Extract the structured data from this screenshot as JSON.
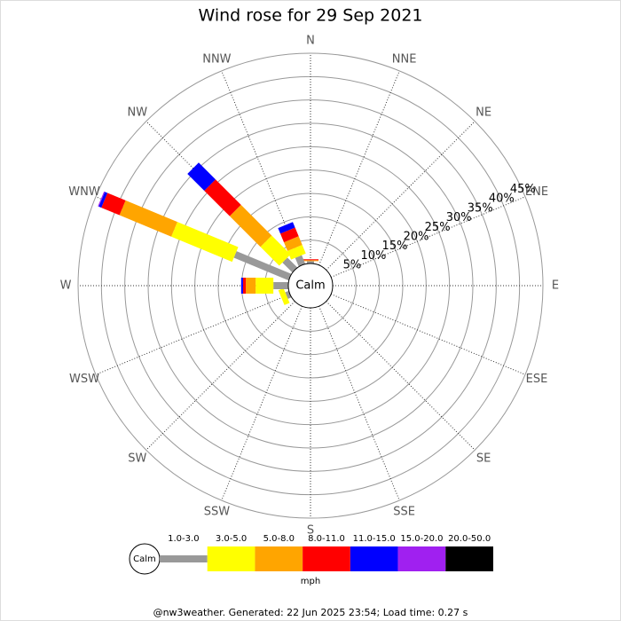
{
  "chart_data": {
    "type": "windrose",
    "title": "Wind rose for 29 Sep 2021",
    "directions": [
      "N",
      "NNE",
      "NE",
      "ENE",
      "E",
      "ESE",
      "SE",
      "SSE",
      "S",
      "SSW",
      "SW",
      "WSW",
      "W",
      "WNW",
      "NW",
      "NNW"
    ],
    "series": [
      {
        "name": "1.0-3.0",
        "color": "#999999",
        "values": [
          0.5,
          0,
          0,
          0,
          0,
          0,
          0,
          0,
          0,
          0,
          0,
          0.8,
          3.2,
          12.7,
          3,
          2
        ]
      },
      {
        "name": "3.0-5.0",
        "color": "#ffff00",
        "values": [
          0,
          0,
          0,
          0,
          0,
          0,
          0,
          0,
          0,
          0,
          0,
          1.2,
          3.8,
          14.1,
          5.7,
          2
        ]
      },
      {
        "name": "5.0-8.0",
        "color": "#ffa500",
        "values": [
          0.2,
          0,
          0,
          0,
          0,
          0,
          0,
          0,
          0,
          0,
          0,
          0,
          2.1,
          12,
          9.3,
          2
        ]
      },
      {
        "name": "8.0-11.0",
        "color": "#ff0000",
        "values": [
          0.2,
          0,
          0,
          0,
          0,
          0,
          0,
          0,
          0,
          0,
          0,
          0,
          0.6,
          4.2,
          7.7,
          2
        ]
      },
      {
        "name": "11.0-15.0",
        "color": "#0000ff",
        "values": [
          0,
          0,
          0,
          0,
          0,
          0,
          0,
          0,
          0,
          0,
          0,
          0,
          0.4,
          0.6,
          5.1,
          1.3
        ]
      },
      {
        "name": "15.0-20.0",
        "color": "#a020f0",
        "values": [
          0,
          0,
          0,
          0,
          0,
          0,
          0,
          0,
          0,
          0,
          0,
          0,
          0,
          0.2,
          0,
          0
        ]
      },
      {
        "name": "20.0-50.0",
        "color": "#000000",
        "values": [
          0,
          0,
          0,
          0,
          0,
          0,
          0,
          0,
          0,
          0,
          0,
          0,
          0,
          0,
          0,
          0
        ]
      }
    ],
    "rlim": [
      0,
      45
    ],
    "rticks": [
      {
        "value": 5,
        "label": "5%"
      },
      {
        "value": 10,
        "label": "10%"
      },
      {
        "value": 15,
        "label": "15%"
      },
      {
        "value": 20,
        "label": "20%"
      },
      {
        "value": 25,
        "label": "25%"
      },
      {
        "value": 30,
        "label": "30%"
      },
      {
        "value": 35,
        "label": "35%"
      },
      {
        "value": 40,
        "label": "40%"
      },
      {
        "value": 45,
        "label": "45%"
      }
    ],
    "calm_label": "Calm",
    "legend_unit": "mph",
    "footer": "@nw3weather. Generated: 22 Jun 2025 23:54; Load time: 0.27 s"
  }
}
